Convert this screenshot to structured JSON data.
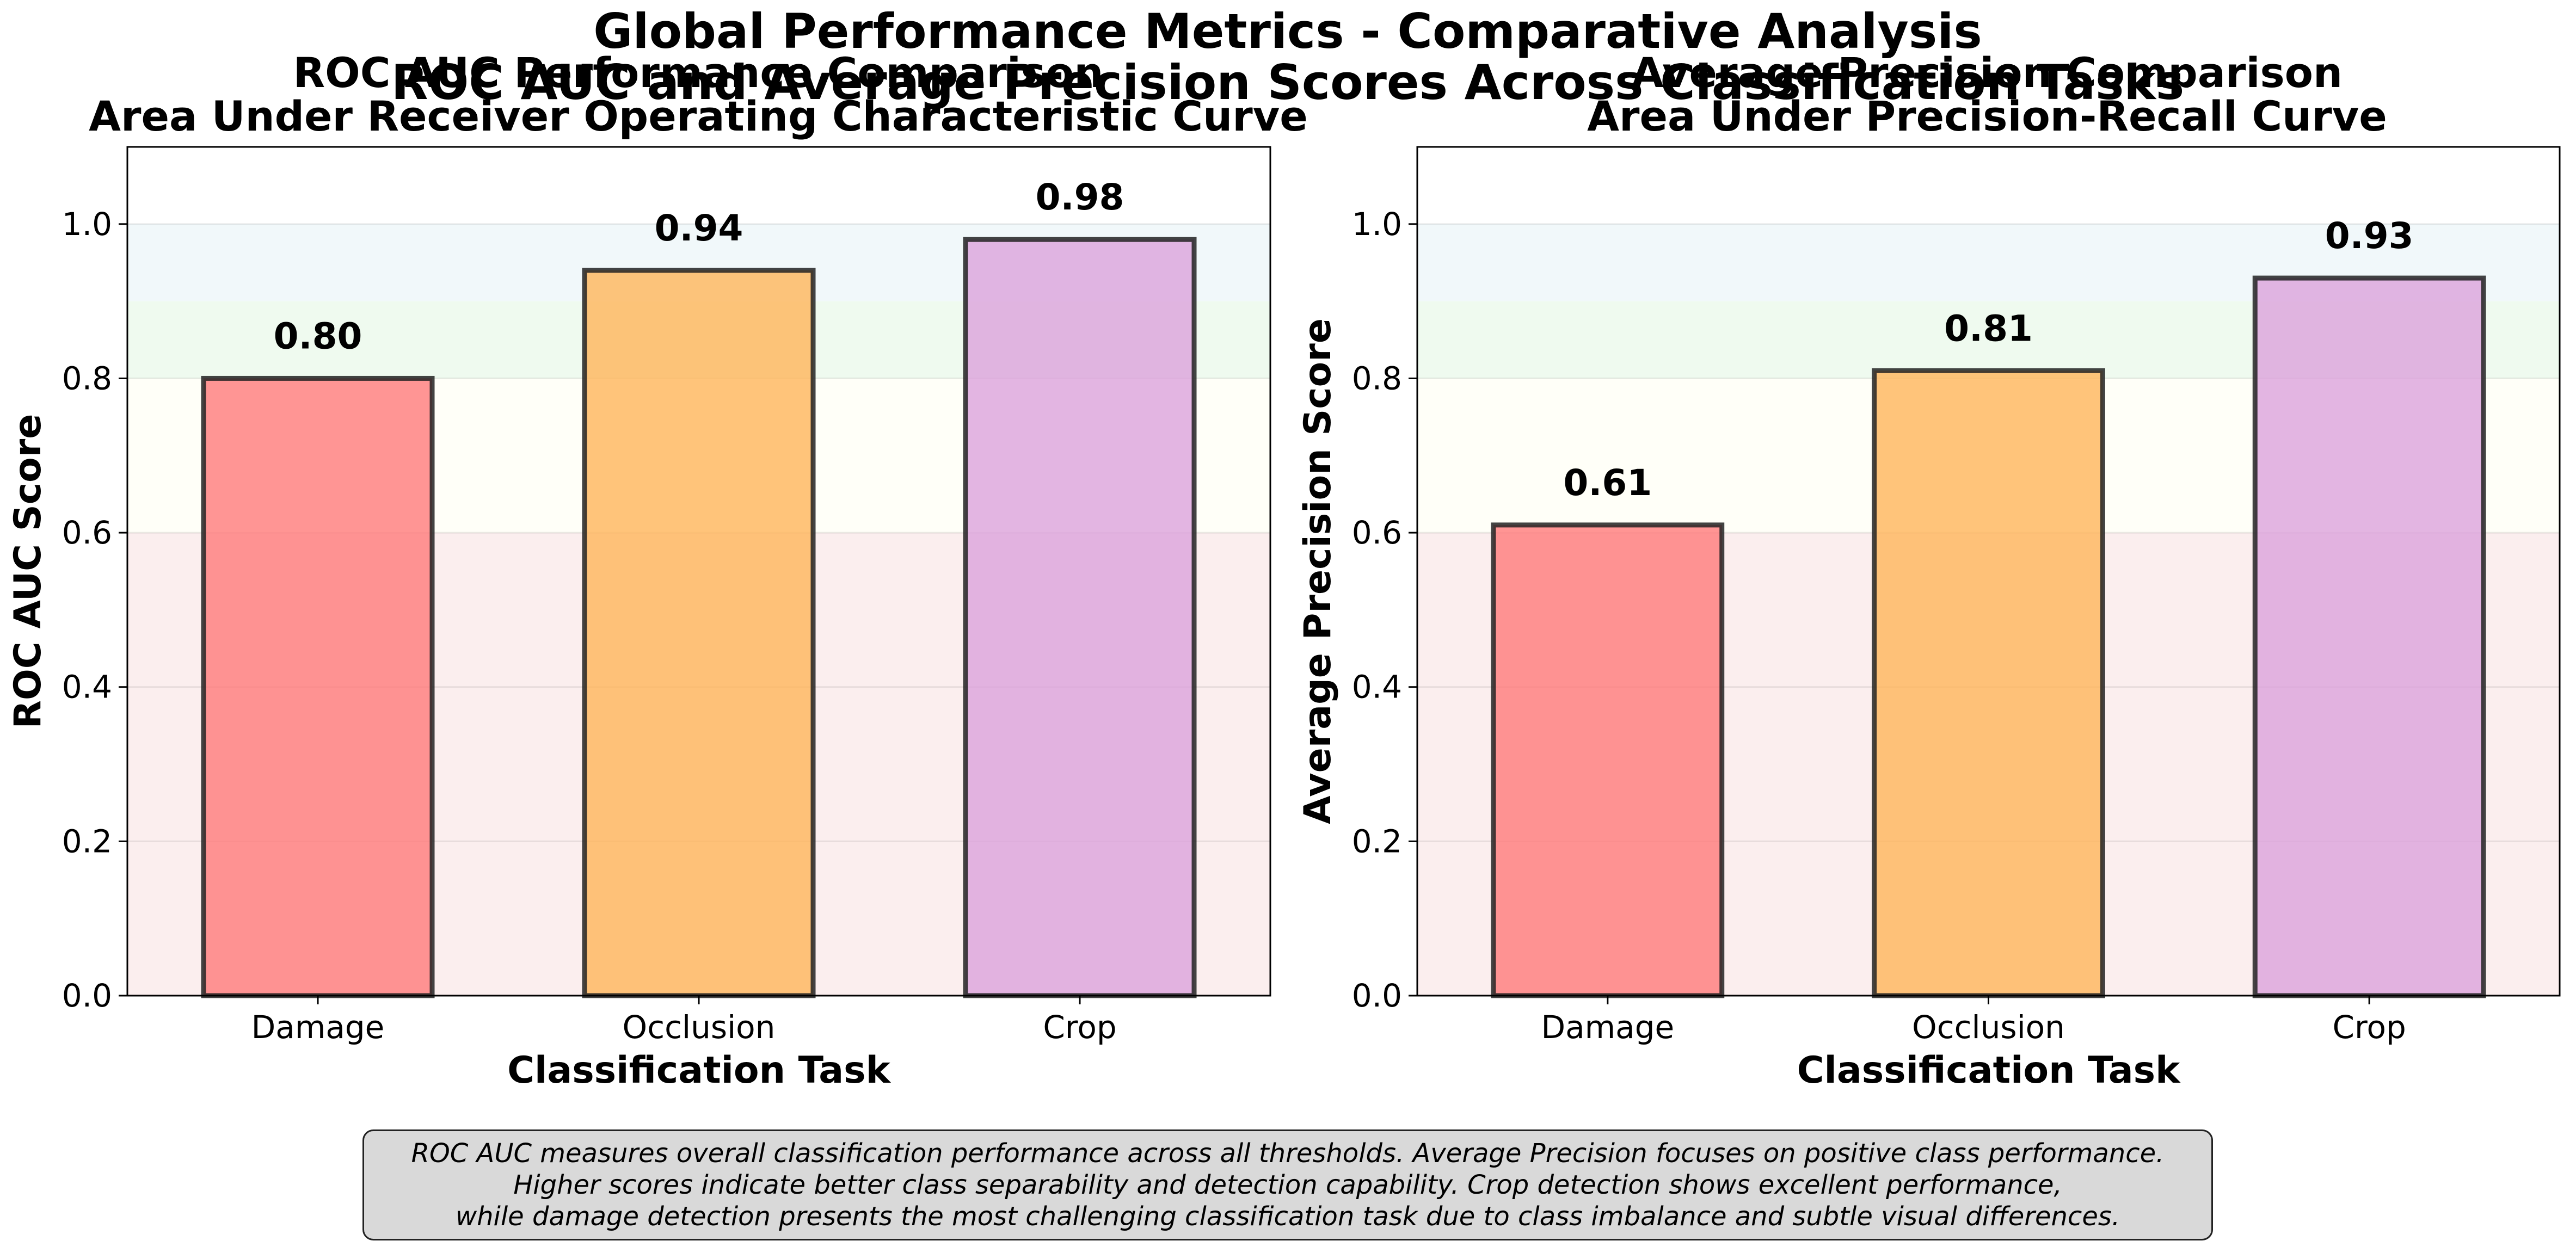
{
  "figure": {
    "suptitle": "Global Performance Metrics - Comparative Analysis",
    "suptitle_line2": "ROC AUC and Average Precision Scores Across Classification Tasks",
    "footnote_lines": [
      "ROC AUC measures overall classification performance across all thresholds. Average Precision focuses on positive class performance.",
      "Higher scores indicate better class separability and detection capability. Crop detection shows excellent performance,",
      "while damage detection presents the most challenging classification task due to class imbalance and subtle visual differences."
    ]
  },
  "chart_data": [
    {
      "type": "bar",
      "title": "ROC AUC Performance Comparison",
      "subtitle": "Area Under Receiver Operating Characteristic Curve",
      "xlabel": "Classification Task",
      "ylabel": "ROC AUC Score",
      "categories": [
        "Damage",
        "Occlusion",
        "Crop"
      ],
      "values": [
        0.8,
        0.94,
        0.98
      ],
      "value_labels": [
        "0.80",
        "0.94",
        "0.98"
      ],
      "ylim": [
        0,
        1.1
      ],
      "yticks": [
        0.0,
        0.2,
        0.4,
        0.6,
        0.8,
        1.0
      ],
      "ytick_labels": [
        "0.0",
        "0.2",
        "0.4",
        "0.6",
        "0.8",
        "1.0"
      ],
      "grid": true,
      "bar_colors": [
        "#ff7b7b",
        "#ffb55a",
        "#dca3dc"
      ],
      "background_bands": [
        {
          "from": 0.0,
          "to": 0.6,
          "color": "#fbeeee"
        },
        {
          "from": 0.6,
          "to": 0.8,
          "color": "#fffff8"
        },
        {
          "from": 0.8,
          "to": 0.9,
          "color": "#effaef"
        },
        {
          "from": 0.9,
          "to": 1.0,
          "color": "#f1f8fa"
        }
      ]
    },
    {
      "type": "bar",
      "title": "Average Precision Comparison",
      "subtitle": "Area Under Precision-Recall Curve",
      "xlabel": "Classification Task",
      "ylabel": "Average Precision Score",
      "categories": [
        "Damage",
        "Occlusion",
        "Crop"
      ],
      "values": [
        0.61,
        0.81,
        0.93
      ],
      "value_labels": [
        "0.61",
        "0.81",
        "0.93"
      ],
      "ylim": [
        0,
        1.1
      ],
      "yticks": [
        0.0,
        0.2,
        0.4,
        0.6,
        0.8,
        1.0
      ],
      "ytick_labels": [
        "0.0",
        "0.2",
        "0.4",
        "0.6",
        "0.8",
        "1.0"
      ],
      "grid": true,
      "bar_colors": [
        "#ff7b7b",
        "#ffb55a",
        "#dca3dc"
      ],
      "background_bands": [
        {
          "from": 0.0,
          "to": 0.6,
          "color": "#fbeeee"
        },
        {
          "from": 0.6,
          "to": 0.8,
          "color": "#fffff8"
        },
        {
          "from": 0.8,
          "to": 0.9,
          "color": "#effaef"
        },
        {
          "from": 0.9,
          "to": 1.0,
          "color": "#f1f8fa"
        }
      ]
    }
  ]
}
